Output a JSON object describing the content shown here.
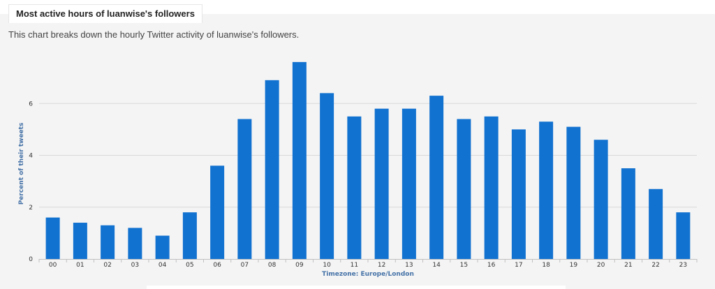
{
  "header": {
    "title": "Most active hours of luanwise's followers",
    "subtitle": "This chart breaks down the hourly Twitter activity of luanwise's followers."
  },
  "chart_data": {
    "type": "bar",
    "categories": [
      "00",
      "01",
      "02",
      "03",
      "04",
      "05",
      "06",
      "07",
      "08",
      "09",
      "10",
      "11",
      "12",
      "13",
      "14",
      "15",
      "16",
      "17",
      "18",
      "19",
      "20",
      "21",
      "22",
      "23"
    ],
    "values": [
      1.6,
      1.4,
      1.3,
      1.2,
      0.9,
      1.8,
      3.6,
      5.4,
      6.9,
      7.6,
      6.4,
      5.5,
      5.8,
      5.8,
      6.3,
      5.4,
      5.5,
      5.0,
      5.3,
      5.1,
      4.6,
      3.5,
      2.7,
      1.8
    ],
    "title": "Most active hours of luanwise's followers",
    "subtitle": "This chart breaks down the hourly Twitter activity of luanwise's followers.",
    "xlabel": "Timezone: Europe/London",
    "ylabel": "Percent of their tweets",
    "ylim": [
      0,
      8
    ],
    "yticks": [
      0,
      2,
      4,
      6
    ],
    "grid": true,
    "colors": {
      "bar": "#1272d0",
      "grid": "#d8d8d8",
      "axis_title": "#4572a7"
    }
  }
}
